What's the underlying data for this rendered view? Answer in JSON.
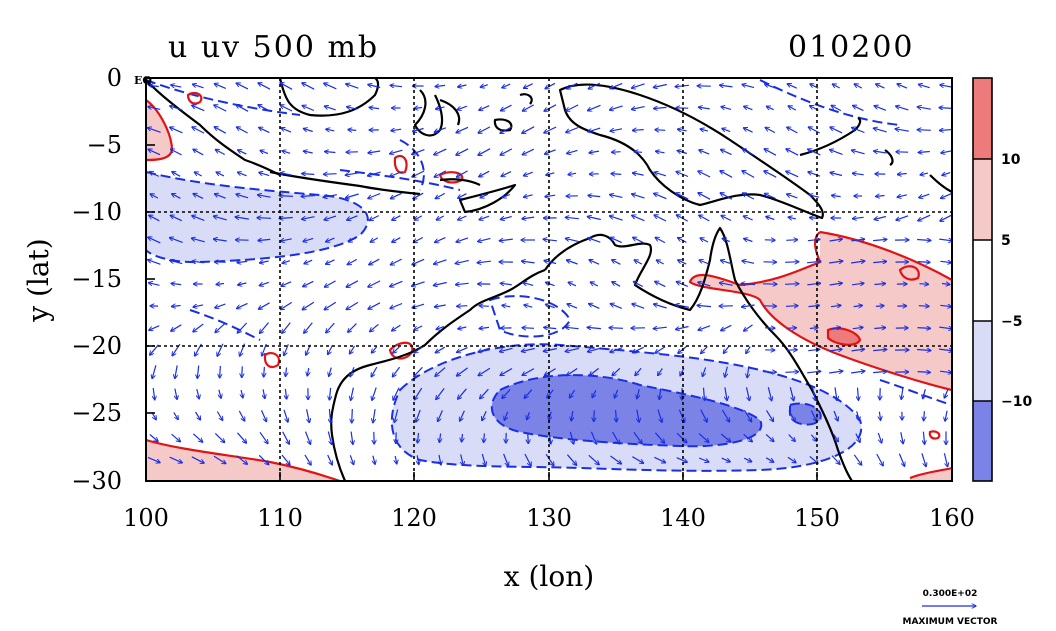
{
  "title_left": "u uv 500 mb",
  "title_right": "010200",
  "chart_data": {
    "type": "heatmap",
    "title": "u uv 500 mb",
    "date_code": "010200",
    "xlabel": "x (lon)",
    "ylabel": "y (lat)",
    "xlim": [
      100,
      160
    ],
    "ylim": [
      -30,
      0
    ],
    "x_ticks": [
      100,
      110,
      120,
      130,
      140,
      150,
      160
    ],
    "y_ticks": [
      0,
      -5,
      -10,
      -15,
      -20,
      -25,
      -30
    ],
    "x_tick_labels": [
      "100",
      "110",
      "120",
      "130",
      "140",
      "150",
      "160"
    ],
    "y_tick_labels": [
      "0 EQ",
      "−5",
      "−10",
      "−15",
      "−20",
      "−25",
      "−30"
    ],
    "grid_lines_lon": [
      110,
      120,
      130,
      140,
      150
    ],
    "grid_lines_lat": [
      -10,
      -20
    ],
    "colorbar": {
      "levels": [
        -10,
        -5,
        5,
        10
      ],
      "labels": [
        "−10",
        "−5",
        "5",
        "10"
      ],
      "colors": [
        "#7b84e6",
        "#d8dcf6",
        "#ffffff",
        "#f6c9c9",
        "#ee7b7b"
      ]
    },
    "regions": [
      {
        "sign": "negative",
        "level": -5,
        "description_lon": [
          100,
          120
        ],
        "description_lat": [
          -8,
          -14
        ]
      },
      {
        "sign": "negative",
        "level": -5,
        "description_lon": [
          120,
          150
        ],
        "description_lat": [
          -19,
          -30
        ]
      },
      {
        "sign": "negative",
        "level": -10,
        "description_lon": [
          127,
          148
        ],
        "description_lat": [
          -22,
          -27
        ]
      },
      {
        "sign": "positive",
        "level": 5,
        "description_lon": [
          140,
          160
        ],
        "description_lat": [
          -12,
          -24
        ]
      },
      {
        "sign": "positive",
        "level": 5,
        "description_lon": [
          100,
          115
        ],
        "description_lat": [
          -27,
          -30
        ]
      },
      {
        "sign": "positive",
        "level": 5,
        "description_lon": [
          100,
          102
        ],
        "description_lat": [
          -2,
          -6
        ]
      }
    ],
    "vector_reference": {
      "value": "0.300E+02",
      "label": "MAXIMUM VECTOR"
    }
  },
  "colors": {
    "negative_contour": "#1a2ee6",
    "positive_contour": "#e01414",
    "coast": "#000000",
    "vectors": "#1a2ee6"
  }
}
